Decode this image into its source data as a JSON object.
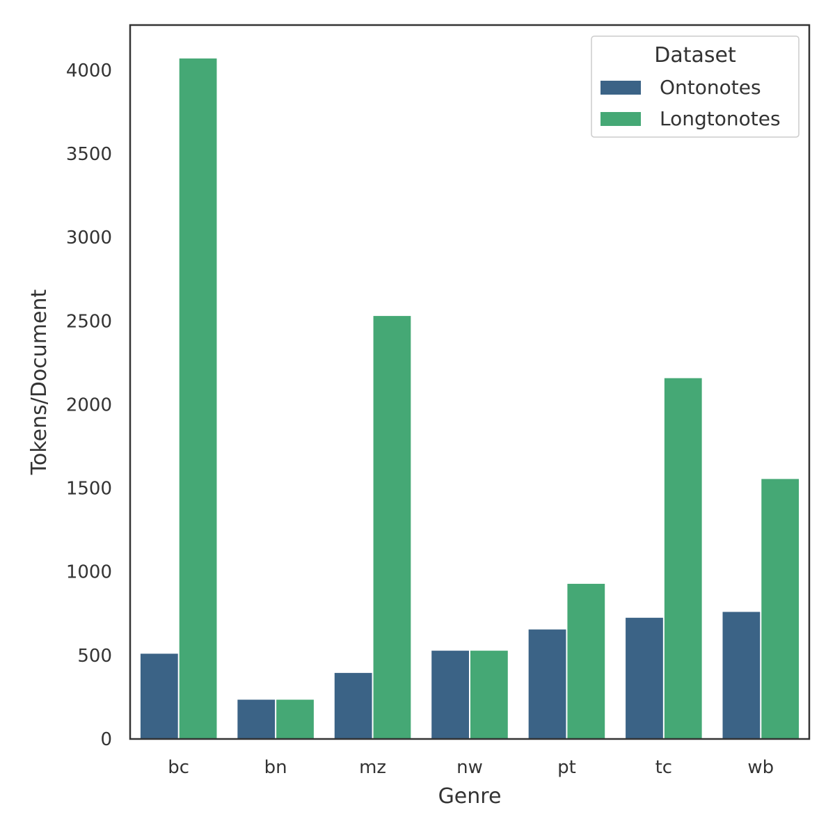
{
  "chart_data": {
    "type": "bar",
    "xlabel": "Genre",
    "ylabel": "Tokens/Document",
    "categories": [
      "bc",
      "bn",
      "mz",
      "nw",
      "pt",
      "tc",
      "wb"
    ],
    "ylim": [
      0,
      4270
    ],
    "yticks": [
      0,
      500,
      1000,
      1500,
      2000,
      2500,
      3000,
      3500,
      4000
    ],
    "grid": false,
    "legend": {
      "title": "Dataset",
      "placement": "top-right"
    },
    "series": [
      {
        "name": "Ontonotes",
        "color": "#3b6386",
        "values": [
          510,
          235,
          395,
          528,
          655,
          725,
          760
        ]
      },
      {
        "name": "Longtonotes",
        "color": "#45a875",
        "values": [
          4070,
          235,
          2530,
          528,
          928,
          2158,
          1555
        ]
      }
    ]
  }
}
